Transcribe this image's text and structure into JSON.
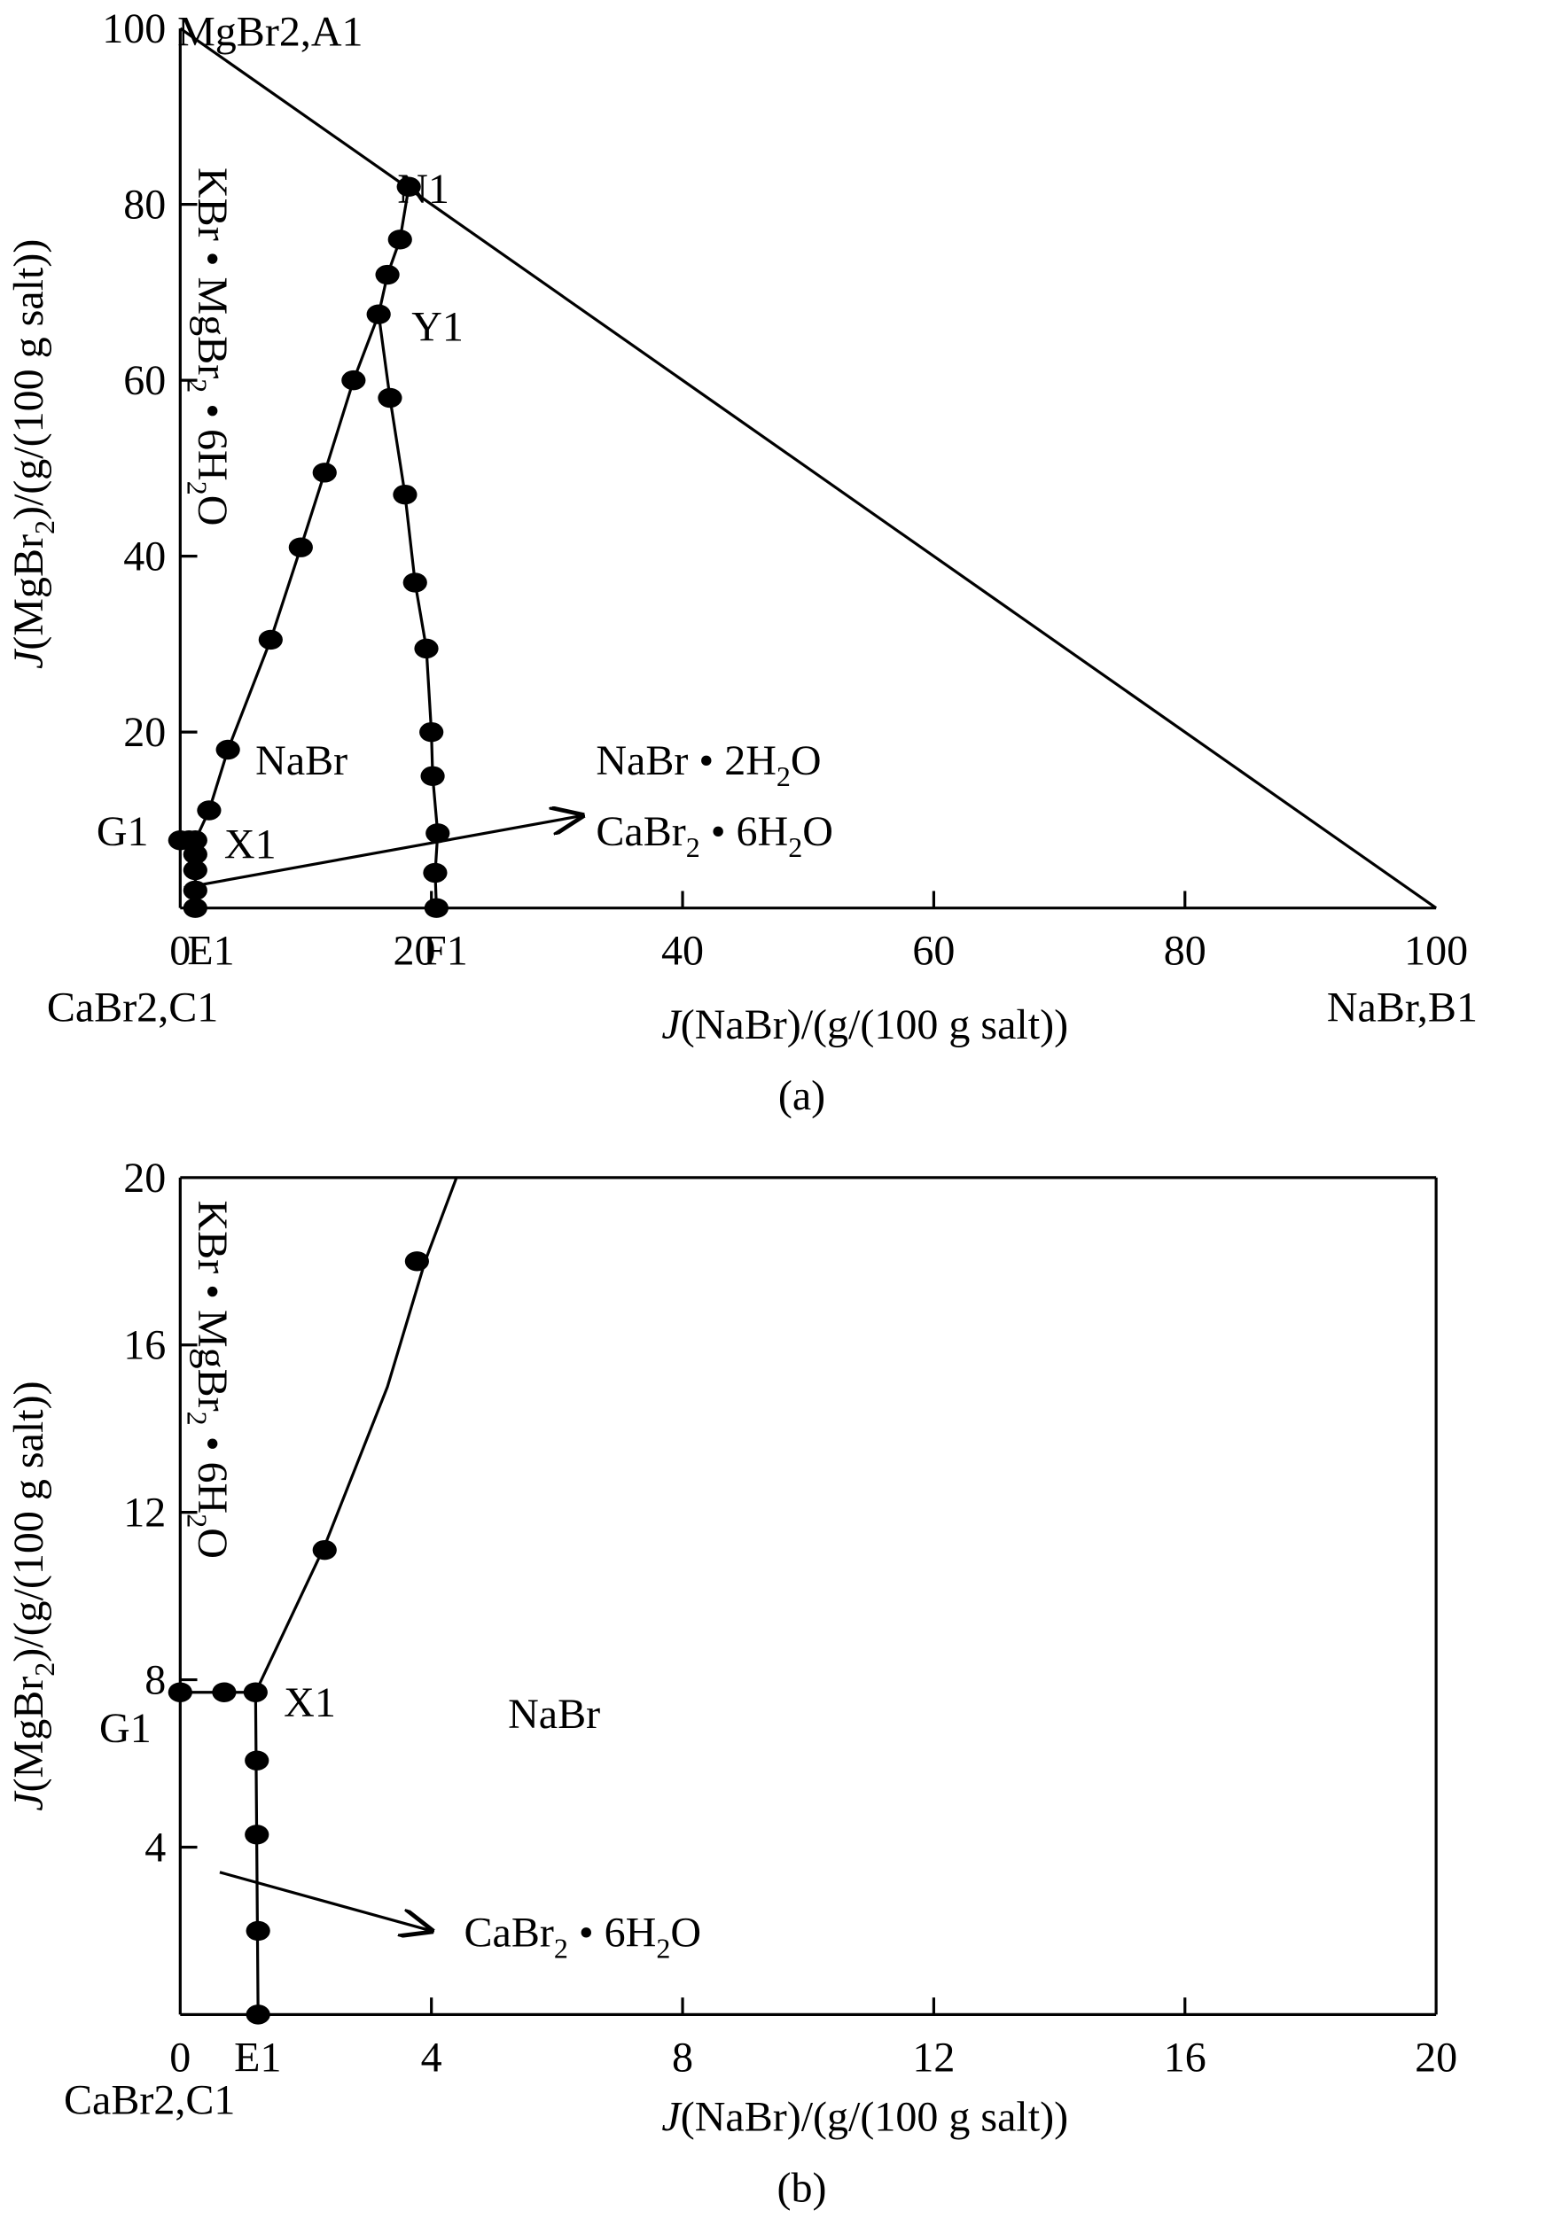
{
  "chart_data": [
    {
      "type": "scatter",
      "panel": "(a)",
      "caption": "(a)",
      "xlabel": "J(NaBr)/(g/(100 g salt))",
      "ylabel": "J(MgBr2)/(g/(100 g salt))",
      "xlim": [
        0,
        100
      ],
      "ylim": [
        0,
        100
      ],
      "xticks": [
        "0",
        "20",
        "40",
        "60",
        "80",
        "100"
      ],
      "yticks": [
        "20",
        "40",
        "60",
        "80",
        "100"
      ],
      "corner_labels": {
        "top": "MgBr2,A1",
        "bottom_left": "CaBr2,C1",
        "bottom_right": "NaBr,B1"
      },
      "point_labels": [
        "N1",
        "Y1",
        "X1",
        "G1",
        "E1",
        "F1"
      ],
      "region_labels": [
        "KBr · MgBr2 · 6H2O",
        "NaBr",
        "NaBr · 2H2O",
        "CaBr2 · 6H2O"
      ],
      "points": [
        [
          0,
          7.7
        ],
        [
          0.7,
          7.7
        ],
        [
          1.2,
          7.7
        ],
        [
          1.2,
          6.1
        ],
        [
          1.2,
          4.3
        ],
        [
          1.2,
          2.0
        ],
        [
          1.2,
          0
        ],
        [
          2.3,
          11.1
        ],
        [
          3.8,
          18
        ],
        [
          7.2,
          30.5
        ],
        [
          9.6,
          41
        ],
        [
          11.5,
          49.5
        ],
        [
          13.8,
          60
        ],
        [
          15.8,
          67.5
        ],
        [
          16.5,
          72
        ],
        [
          17.5,
          76
        ],
        [
          18.2,
          82
        ],
        [
          16.7,
          58
        ],
        [
          17.9,
          47
        ],
        [
          18.7,
          37
        ],
        [
          19.6,
          29.5
        ],
        [
          20,
          20
        ],
        [
          20.1,
          15
        ],
        [
          20.5,
          8.5
        ],
        [
          20.3,
          4
        ],
        [
          20.4,
          0
        ]
      ],
      "curves": [
        [
          [
            0,
            7.7
          ],
          [
            1.2,
            7.7
          ],
          [
            1.2,
            0
          ]
        ],
        [
          [
            1.2,
            7.7
          ],
          [
            2.3,
            11.1
          ],
          [
            3.8,
            18
          ],
          [
            7.2,
            30.5
          ],
          [
            9.6,
            41
          ],
          [
            11.5,
            49.5
          ],
          [
            13.8,
            60
          ],
          [
            15.8,
            67.5
          ],
          [
            16.5,
            72
          ],
          [
            17.5,
            76
          ],
          [
            18.2,
            82
          ]
        ],
        [
          [
            15.8,
            67.5
          ],
          [
            16.7,
            58
          ],
          [
            17.9,
            47
          ],
          [
            18.7,
            37
          ],
          [
            19.6,
            29.5
          ],
          [
            20,
            20
          ],
          [
            20.1,
            15
          ],
          [
            20.5,
            8.5
          ],
          [
            20.3,
            4
          ],
          [
            20.4,
            0
          ]
        ]
      ],
      "arrow": [
        [
          0.3,
          2.3
        ],
        [
          32,
          10.5
        ]
      ]
    },
    {
      "type": "scatter",
      "panel": "(b)",
      "caption": "(b)",
      "xlabel": "J(NaBr)/(g/(100 g salt))",
      "ylabel": "J(MgBr2)/(g/(100 g salt))",
      "xlim": [
        0,
        20
      ],
      "ylim": [
        0,
        20
      ],
      "xticks": [
        "0",
        "4",
        "8",
        "12",
        "16",
        "20"
      ],
      "yticks": [
        "4",
        "8",
        "12",
        "16",
        "20"
      ],
      "corner_labels": {
        "bottom_left": "CaBr2,C1"
      },
      "point_labels": [
        "X1",
        "G1",
        "E1"
      ],
      "region_labels": [
        "KBr · MgBr2 · 6H2O",
        "NaBr",
        "CaBr2 · 6H2O"
      ],
      "points": [
        [
          0,
          7.7
        ],
        [
          0.7,
          7.7
        ],
        [
          1.2,
          7.7
        ],
        [
          1.22,
          6.07
        ],
        [
          1.22,
          4.3
        ],
        [
          1.24,
          2.0
        ],
        [
          1.24,
          0
        ],
        [
          2.3,
          11.1
        ],
        [
          3.77,
          18.0
        ]
      ],
      "curves": [
        [
          [
            0,
            7.7
          ],
          [
            1.2,
            7.7
          ],
          [
            1.24,
            0
          ]
        ],
        [
          [
            1.2,
            7.7
          ],
          [
            2.3,
            11.2
          ],
          [
            3.3,
            15
          ],
          [
            3.9,
            18
          ],
          [
            4.4,
            20
          ]
        ]
      ],
      "arrow": [
        [
          0.63,
          3.4
        ],
        [
          4.0,
          2.0
        ]
      ]
    }
  ]
}
